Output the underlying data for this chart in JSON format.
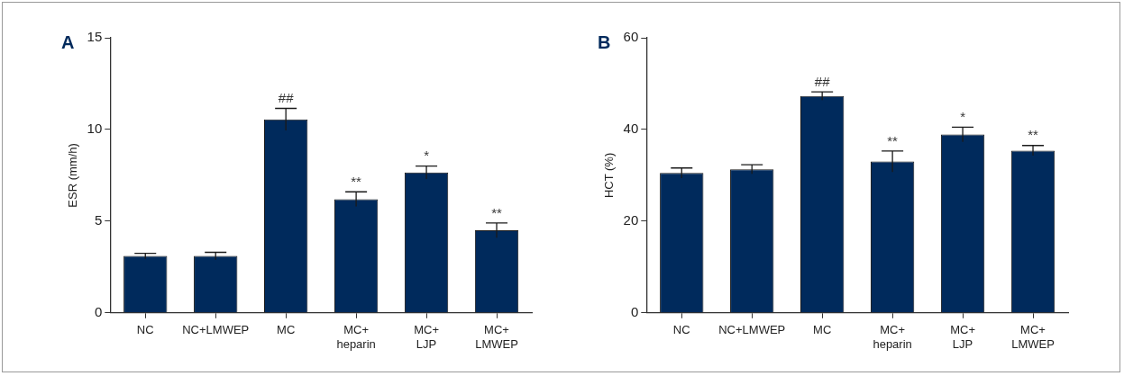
{
  "chart_data": [
    {
      "type": "bar",
      "title": "A",
      "ylabel": "ESR (mm/h)",
      "categories": [
        "NC",
        "NC+LMWEP",
        "MC",
        "MC+ heparin",
        "MC+ LJP",
        "MC+ LMWEP"
      ],
      "values": [
        3.1,
        3.1,
        10.55,
        6.2,
        7.65,
        4.5
      ],
      "errors": [
        0.15,
        0.2,
        0.6,
        0.4,
        0.35,
        0.4
      ],
      "color": "#002a5c",
      "ylim": [
        0,
        15
      ],
      "yticks": [
        0,
        5,
        10,
        15
      ],
      "grid": false,
      "legend": false,
      "annotations": [
        {
          "text": "##",
          "x": "MC",
          "y": 11.15
        },
        {
          "text": "**",
          "x": "MC+ heparin",
          "y": 6.6
        },
        {
          "text": "*",
          "x": "MC+ LJP",
          "y": 8.0
        },
        {
          "text": "**",
          "x": "MC+ LMWEP",
          "y": 4.9
        }
      ]
    },
    {
      "type": "bar",
      "title": "B",
      "ylabel": "HCT (%)",
      "categories": [
        "NC",
        "NC+LMWEP",
        "MC",
        "MC+ heparin",
        "MC+ LJP",
        "MC+ LMWEP"
      ],
      "values": [
        30.5,
        31.3,
        47.3,
        33.0,
        38.9,
        35.4
      ],
      "errors": [
        1.1,
        1.0,
        0.9,
        2.3,
        1.6,
        1.1
      ],
      "color": "#002a5c",
      "ylim": [
        0,
        60
      ],
      "yticks": [
        0,
        20,
        40,
        60
      ],
      "grid": false,
      "legend": false,
      "annotations": [
        {
          "text": "##",
          "x": "MC",
          "y": 48.2
        },
        {
          "text": "**",
          "x": "MC+ heparin",
          "y": 35.3
        },
        {
          "text": "*",
          "x": "MC+ LJP",
          "y": 40.5
        },
        {
          "text": "**",
          "x": "MC+ LMWEP",
          "y": 36.5
        }
      ]
    }
  ]
}
